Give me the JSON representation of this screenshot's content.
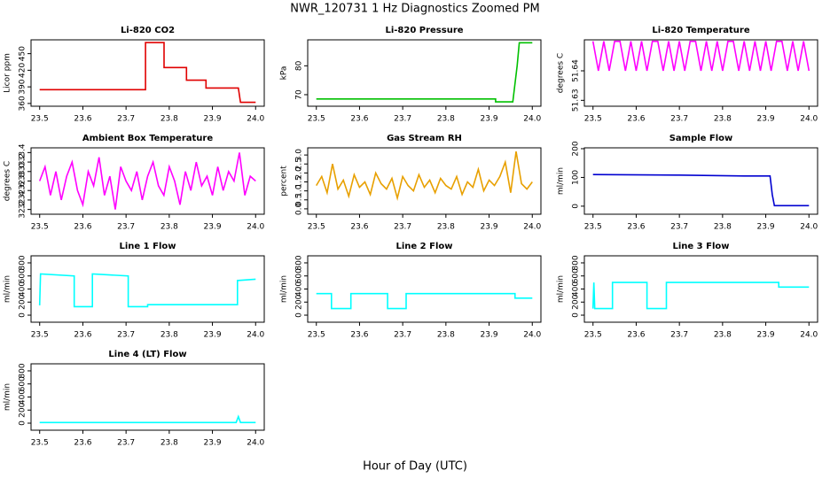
{
  "title": "NWR_120731  1 Hz Diagnostics Zoomed PM",
  "xlabel": "Hour of Day (UTC)",
  "chart_data": [
    {
      "type": "line",
      "title": "Li-820 CO2",
      "ylabel": "Licor ppm",
      "color": "#e00000",
      "x": [
        23.5,
        23.745,
        23.745,
        23.788,
        23.788,
        23.84,
        23.84,
        23.885,
        23.885,
        23.96,
        23.965,
        24.0
      ],
      "values": [
        385,
        385,
        470,
        470,
        425,
        425,
        402,
        402,
        388,
        388,
        362,
        362
      ],
      "xlim": [
        23.48,
        24.02
      ],
      "ylim": [
        355,
        475
      ],
      "xticks": [
        23.5,
        23.6,
        23.7,
        23.8,
        23.9,
        {
          "value": 24,
          "label": "24.0"
        }
      ],
      "yticks": [
        360,
        390,
        420,
        450
      ]
    },
    {
      "type": "line",
      "title": "Li-820 Pressure",
      "ylabel": "kPa",
      "color": "#00c000",
      "x": [
        23.5,
        23.915,
        23.915,
        23.955,
        23.965,
        23.97,
        24.0
      ],
      "values": [
        68.5,
        68.5,
        67.5,
        67.5,
        80,
        88,
        88
      ],
      "xlim": [
        23.48,
        24.02
      ],
      "ylim": [
        66,
        89
      ],
      "xticks": [
        23.5,
        23.6,
        23.7,
        23.8,
        23.9,
        {
          "value": 24,
          "label": "24.0"
        }
      ],
      "yticks": [
        70,
        80
      ]
    },
    {
      "type": "line",
      "title": "Li-820 Temperature",
      "ylabel": "degrees C",
      "color": "#ff00ff",
      "x": [
        23.5,
        23.5125,
        23.525,
        23.5375,
        23.55,
        23.5625,
        23.575,
        23.5875,
        23.6,
        23.6125,
        23.625,
        23.6375,
        23.65,
        23.6625,
        23.675,
        23.6875,
        23.7,
        23.7125,
        23.725,
        23.7375,
        23.75,
        23.7625,
        23.775,
        23.7875,
        23.8,
        23.8125,
        23.825,
        23.8375,
        23.85,
        23.8625,
        23.875,
        23.8875,
        23.9,
        23.9125,
        23.925,
        23.9375,
        23.95,
        23.9625,
        23.975,
        23.9875,
        24.0
      ],
      "values": [
        51.65,
        51.64,
        51.65,
        51.64,
        51.65,
        51.65,
        51.64,
        51.65,
        51.64,
        51.65,
        51.64,
        51.65,
        51.65,
        51.64,
        51.65,
        51.64,
        51.65,
        51.64,
        51.65,
        51.65,
        51.64,
        51.65,
        51.64,
        51.65,
        51.64,
        51.65,
        51.65,
        51.64,
        51.65,
        51.64,
        51.65,
        51.64,
        51.65,
        51.64,
        51.65,
        51.65,
        51.64,
        51.65,
        51.64,
        51.65,
        51.64
      ],
      "xlim": [
        23.48,
        24.02
      ],
      "ylim": [
        51.628,
        51.6505
      ],
      "xticks": [
        23.5,
        23.6,
        23.7,
        23.8,
        23.9,
        {
          "value": 24,
          "label": "24.0"
        }
      ],
      "yticks": [
        51.63,
        51.64
      ]
    },
    {
      "type": "line",
      "title": "Ambient Box Temperature",
      "ylabel": "degrees C",
      "color": "#ff00ff",
      "x": [
        23.5,
        23.5125,
        23.525,
        23.5375,
        23.55,
        23.5625,
        23.575,
        23.5875,
        23.6,
        23.6125,
        23.625,
        23.6375,
        23.65,
        23.6625,
        23.675,
        23.6875,
        23.7,
        23.7125,
        23.725,
        23.7375,
        23.75,
        23.7625,
        23.775,
        23.7875,
        23.8,
        23.8125,
        23.825,
        23.8375,
        23.85,
        23.8625,
        23.875,
        23.8875,
        23.9,
        23.9125,
        23.925,
        23.9375,
        23.95,
        23.9625,
        23.975,
        23.9875,
        24.0
      ],
      "values": [
        32.8,
        33.1,
        32.5,
        33.0,
        32.4,
        32.9,
        33.2,
        32.6,
        32.3,
        33.0,
        32.7,
        33.3,
        32.5,
        32.9,
        32.2,
        33.1,
        32.8,
        32.6,
        33.0,
        32.4,
        32.9,
        33.2,
        32.7,
        32.5,
        33.1,
        32.8,
        32.3,
        33.0,
        32.6,
        33.2,
        32.7,
        32.9,
        32.5,
        33.1,
        32.6,
        33.0,
        32.8,
        33.4,
        32.5,
        32.9,
        32.8
      ],
      "xlim": [
        23.48,
        24.02
      ],
      "ylim": [
        32.1,
        33.5
      ],
      "xticks": [
        23.5,
        23.6,
        23.7,
        23.8,
        23.9,
        {
          "value": 24,
          "label": "24.0"
        }
      ],
      "yticks": [
        32.2,
        32.4,
        32.6,
        32.8,
        {
          "value": 33,
          "label": "33.0"
        },
        33.2,
        33.4
      ]
    },
    {
      "type": "line",
      "title": "Gas Stream RH",
      "ylabel": "percent",
      "color": "#e8a000",
      "x": [
        23.5,
        23.5125,
        23.525,
        23.5375,
        23.55,
        23.5625,
        23.575,
        23.5875,
        23.6,
        23.6125,
        23.625,
        23.6375,
        23.65,
        23.6625,
        23.675,
        23.6875,
        23.7,
        23.7125,
        23.725,
        23.7375,
        23.75,
        23.7625,
        23.775,
        23.7875,
        23.8,
        23.8125,
        23.825,
        23.8375,
        23.85,
        23.8625,
        23.875,
        23.8875,
        23.9,
        23.9125,
        23.925,
        23.9375,
        23.95,
        23.9625,
        23.975,
        23.9875,
        24.0
      ],
      "values": [
        1.3,
        1.8,
        0.9,
        2.5,
        1.1,
        1.6,
        0.7,
        1.9,
        1.2,
        1.5,
        0.8,
        2.0,
        1.4,
        1.1,
        1.7,
        0.6,
        1.8,
        1.3,
        1.0,
        1.9,
        1.2,
        1.6,
        0.9,
        1.7,
        1.3,
        1.1,
        1.8,
        0.8,
        1.5,
        1.2,
        2.2,
        1.0,
        1.6,
        1.3,
        1.8,
        2.6,
        0.9,
        3.2,
        1.4,
        1.1,
        1.5
      ],
      "xlim": [
        23.48,
        24.02
      ],
      "ylim": [
        -0.3,
        3.4
      ],
      "xticks": [
        23.5,
        23.6,
        23.7,
        23.8,
        23.9,
        {
          "value": 24,
          "label": "24.0"
        }
      ],
      "yticks": [
        {
          "value": 0,
          "label": "0.0"
        },
        0.5,
        {
          "value": 1,
          "label": "1.0"
        },
        1.5,
        {
          "value": 2,
          "label": "2.0"
        },
        2.5,
        {
          "value": 3,
          "label": "3.0"
        }
      ]
    },
    {
      "type": "line",
      "title": "Sample Flow",
      "ylabel": "ml/min",
      "color": "#0000d0",
      "x": [
        23.5,
        23.7,
        23.85,
        23.91,
        23.915,
        23.92,
        24.0
      ],
      "values": [
        110,
        108,
        105,
        105,
        40,
        2,
        2
      ],
      "xlim": [
        23.48,
        24.02
      ],
      "ylim": [
        -28,
        203
      ],
      "xticks": [
        23.5,
        23.6,
        23.7,
        23.8,
        23.9,
        {
          "value": 24,
          "label": "24.0"
        }
      ],
      "yticks": [
        0,
        100,
        200
      ]
    },
    {
      "type": "line",
      "title": "Line 1 Flow",
      "ylabel": "ml/min",
      "color": "#00ffff",
      "x": [
        23.5,
        23.502,
        23.58,
        23.58,
        23.622,
        23.622,
        23.705,
        23.705,
        23.75,
        23.75,
        23.958,
        23.958,
        24.0
      ],
      "values": [
        150,
        630,
        600,
        130,
        130,
        630,
        600,
        130,
        130,
        160,
        160,
        530,
        550
      ],
      "xlim": [
        23.48,
        24.02
      ],
      "ylim": [
        -108,
        908
      ],
      "xticks": [
        23.5,
        23.6,
        23.7,
        23.8,
        23.9,
        {
          "value": 24,
          "label": "24.0"
        }
      ],
      "yticks": [
        0,
        200,
        400,
        600,
        800
      ]
    },
    {
      "type": "line",
      "title": "Line 2 Flow",
      "ylabel": "ml/min",
      "color": "#00ffff",
      "x": [
        23.5,
        23.535,
        23.535,
        23.58,
        23.58,
        23.665,
        23.665,
        23.708,
        23.708,
        23.96,
        23.96,
        24.0
      ],
      "values": [
        330,
        330,
        100,
        100,
        330,
        330,
        100,
        100,
        330,
        330,
        260,
        260
      ],
      "xlim": [
        23.48,
        24.02
      ],
      "ylim": [
        -108,
        908
      ],
      "xticks": [
        23.5,
        23.6,
        23.7,
        23.8,
        23.9,
        {
          "value": 24,
          "label": "24.0"
        }
      ],
      "yticks": [
        0,
        200,
        400,
        600,
        800
      ]
    },
    {
      "type": "line",
      "title": "Line 3 Flow",
      "ylabel": "ml/min",
      "color": "#00ffff",
      "x": [
        23.5,
        23.502,
        23.504,
        23.545,
        23.545,
        23.625,
        23.625,
        23.67,
        23.67,
        23.93,
        23.93,
        24.0
      ],
      "values": [
        100,
        500,
        100,
        100,
        500,
        500,
        100,
        100,
        500,
        500,
        430,
        430
      ],
      "xlim": [
        23.48,
        24.02
      ],
      "ylim": [
        -108,
        908
      ],
      "xticks": [
        23.5,
        23.6,
        23.7,
        23.8,
        23.9,
        {
          "value": 24,
          "label": "24.0"
        }
      ],
      "yticks": [
        0,
        200,
        400,
        600,
        800
      ]
    },
    {
      "type": "line",
      "title": "Line 4 (LT) Flow",
      "ylabel": "ml/min",
      "color": "#00ffff",
      "x": [
        23.5,
        23.955,
        23.96,
        23.965,
        24.0
      ],
      "values": [
        10,
        10,
        100,
        10,
        10
      ],
      "xlim": [
        23.48,
        24.02
      ],
      "ylim": [
        -108,
        908
      ],
      "xticks": [
        23.5,
        23.6,
        23.7,
        23.8,
        23.9,
        {
          "value": 24,
          "label": "24.0"
        }
      ],
      "yticks": [
        0,
        200,
        400,
        600,
        800
      ]
    }
  ]
}
